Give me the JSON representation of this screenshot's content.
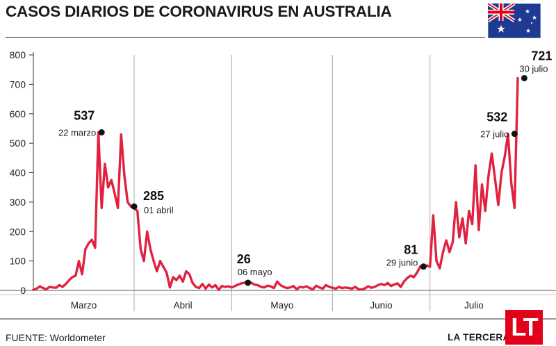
{
  "header": {
    "title": "CASOS DIARIOS DE CORONAVIRUS EN AUSTRALIA",
    "flag_icon": "australia-flag-icon"
  },
  "footer": {
    "source": "FUENTE: Worldometer",
    "brand": "LA TERCERA",
    "logo_text": "LT"
  },
  "colors": {
    "line": "#e0223f",
    "brand_red": "#e3001b",
    "flag_blue": "#1f3a93"
  },
  "chart_data": {
    "type": "line",
    "title": "CASOS DIARIOS DE CORONAVIRUS EN AUSTRALIA",
    "ylim": [
      0,
      800
    ],
    "yticks": [
      0,
      100,
      200,
      300,
      400,
      500,
      600,
      700,
      800
    ],
    "x_start": "2020-03-01",
    "months": [
      "Marzo",
      "Abril",
      "Mayo",
      "Junio",
      "Julio"
    ],
    "series": [
      {
        "values": [
          2,
          6,
          14,
          8,
          4,
          12,
          10,
          9,
          18,
          12,
          22,
          35,
          45,
          50,
          100,
          55,
          140,
          160,
          172,
          145,
          537,
          280,
          430,
          350,
          375,
          330,
          280,
          530,
          390,
          300,
          285,
          280,
          270,
          140,
          100,
          200,
          140,
          100,
          65,
          100,
          80,
          60,
          10,
          45,
          35,
          50,
          30,
          65,
          55,
          25,
          12,
          8,
          22,
          6,
          20,
          10,
          18,
          2,
          15,
          12,
          14,
          10,
          15,
          20,
          24,
          26,
          28,
          26,
          20,
          18,
          12,
          10,
          16,
          14,
          8,
          30,
          18,
          12,
          8,
          10,
          15,
          4,
          12,
          10,
          14,
          8,
          4,
          16,
          10,
          6,
          18,
          12,
          9,
          6,
          12,
          8,
          10,
          8,
          6,
          12,
          4,
          3,
          7,
          14,
          9,
          12,
          18,
          22,
          18,
          25,
          15,
          20,
          24,
          12,
          30,
          42,
          50,
          45,
          60,
          81,
          75,
          85,
          80,
          255,
          100,
          75,
          130,
          170,
          130,
          165,
          300,
          180,
          245,
          160,
          270,
          225,
          425,
          205,
          360,
          270,
          390,
          465,
          380,
          290,
          400,
          455,
          532,
          365,
          280,
          721
        ]
      }
    ],
    "annotations": [
      {
        "value": "537",
        "date": "22 marzo",
        "y": 537
      },
      {
        "value": "285",
        "date": "01 abril",
        "y": 285
      },
      {
        "value": "26",
        "date": "06 mayo",
        "y": 26
      },
      {
        "value": "81",
        "date": "29 junio",
        "y": 81
      },
      {
        "value": "532",
        "date": "27 julio",
        "y": 532
      },
      {
        "value": "721",
        "date": "30 julio",
        "y": 721
      }
    ]
  }
}
